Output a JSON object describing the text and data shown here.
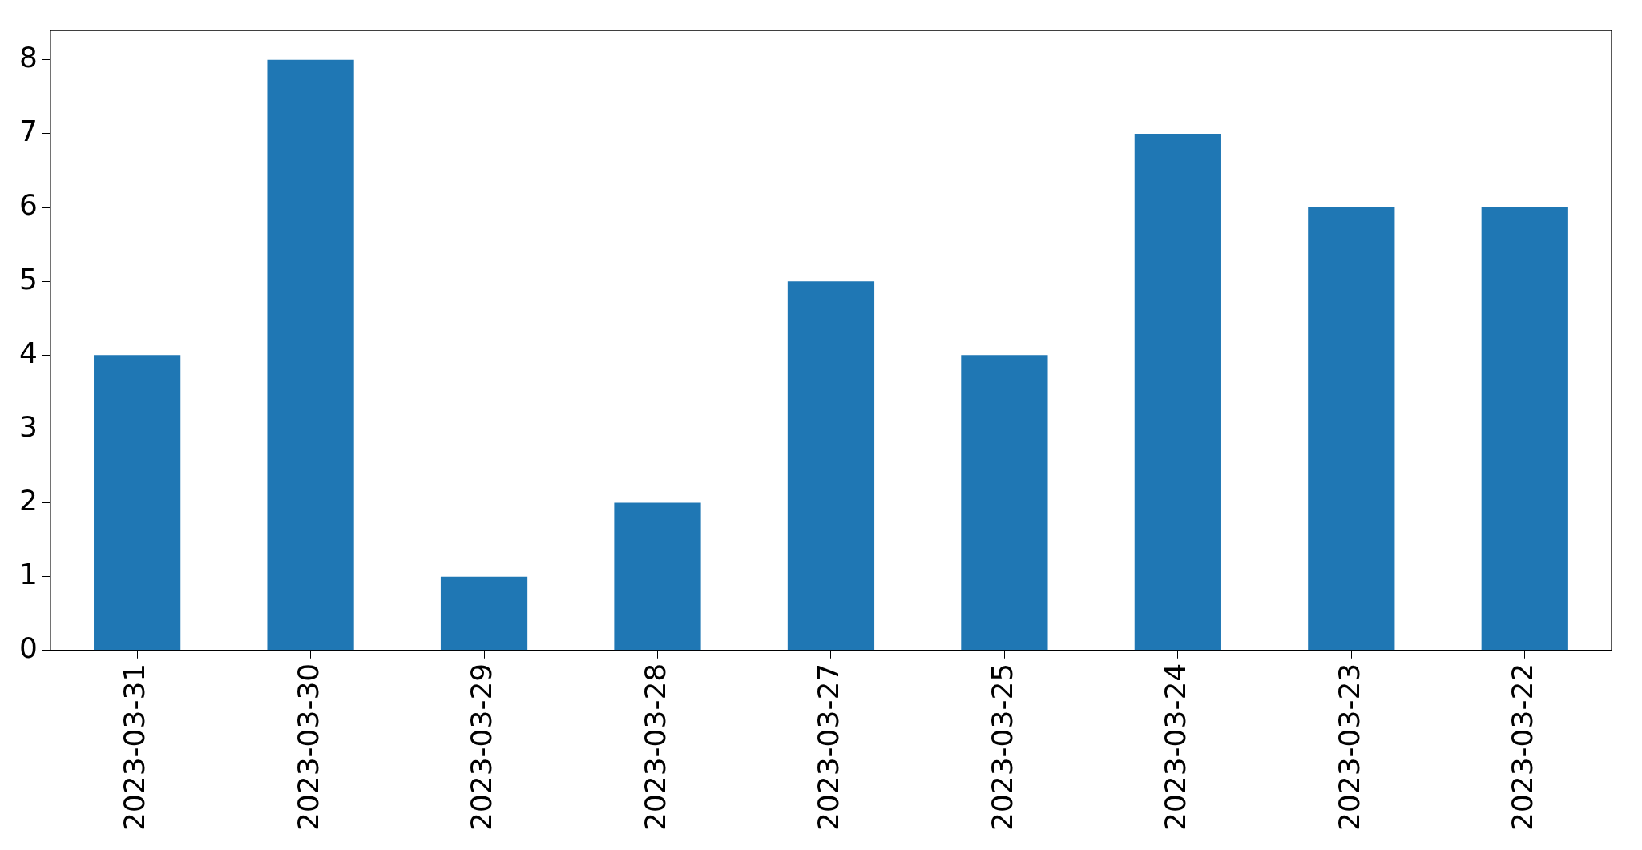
{
  "chart_data": {
    "type": "bar",
    "categories": [
      "2023-03-31",
      "2023-03-30",
      "2023-03-29",
      "2023-03-28",
      "2023-03-27",
      "2023-03-25",
      "2023-03-24",
      "2023-03-23",
      "2023-03-22"
    ],
    "values": [
      4,
      8,
      1,
      2,
      5,
      4,
      7,
      6,
      6
    ],
    "color": "#1f77b4",
    "ylim": [
      0,
      8.4
    ],
    "yticks": [
      0,
      1,
      2,
      3,
      4,
      5,
      6,
      7,
      8
    ],
    "grid": false,
    "legend": false
  }
}
